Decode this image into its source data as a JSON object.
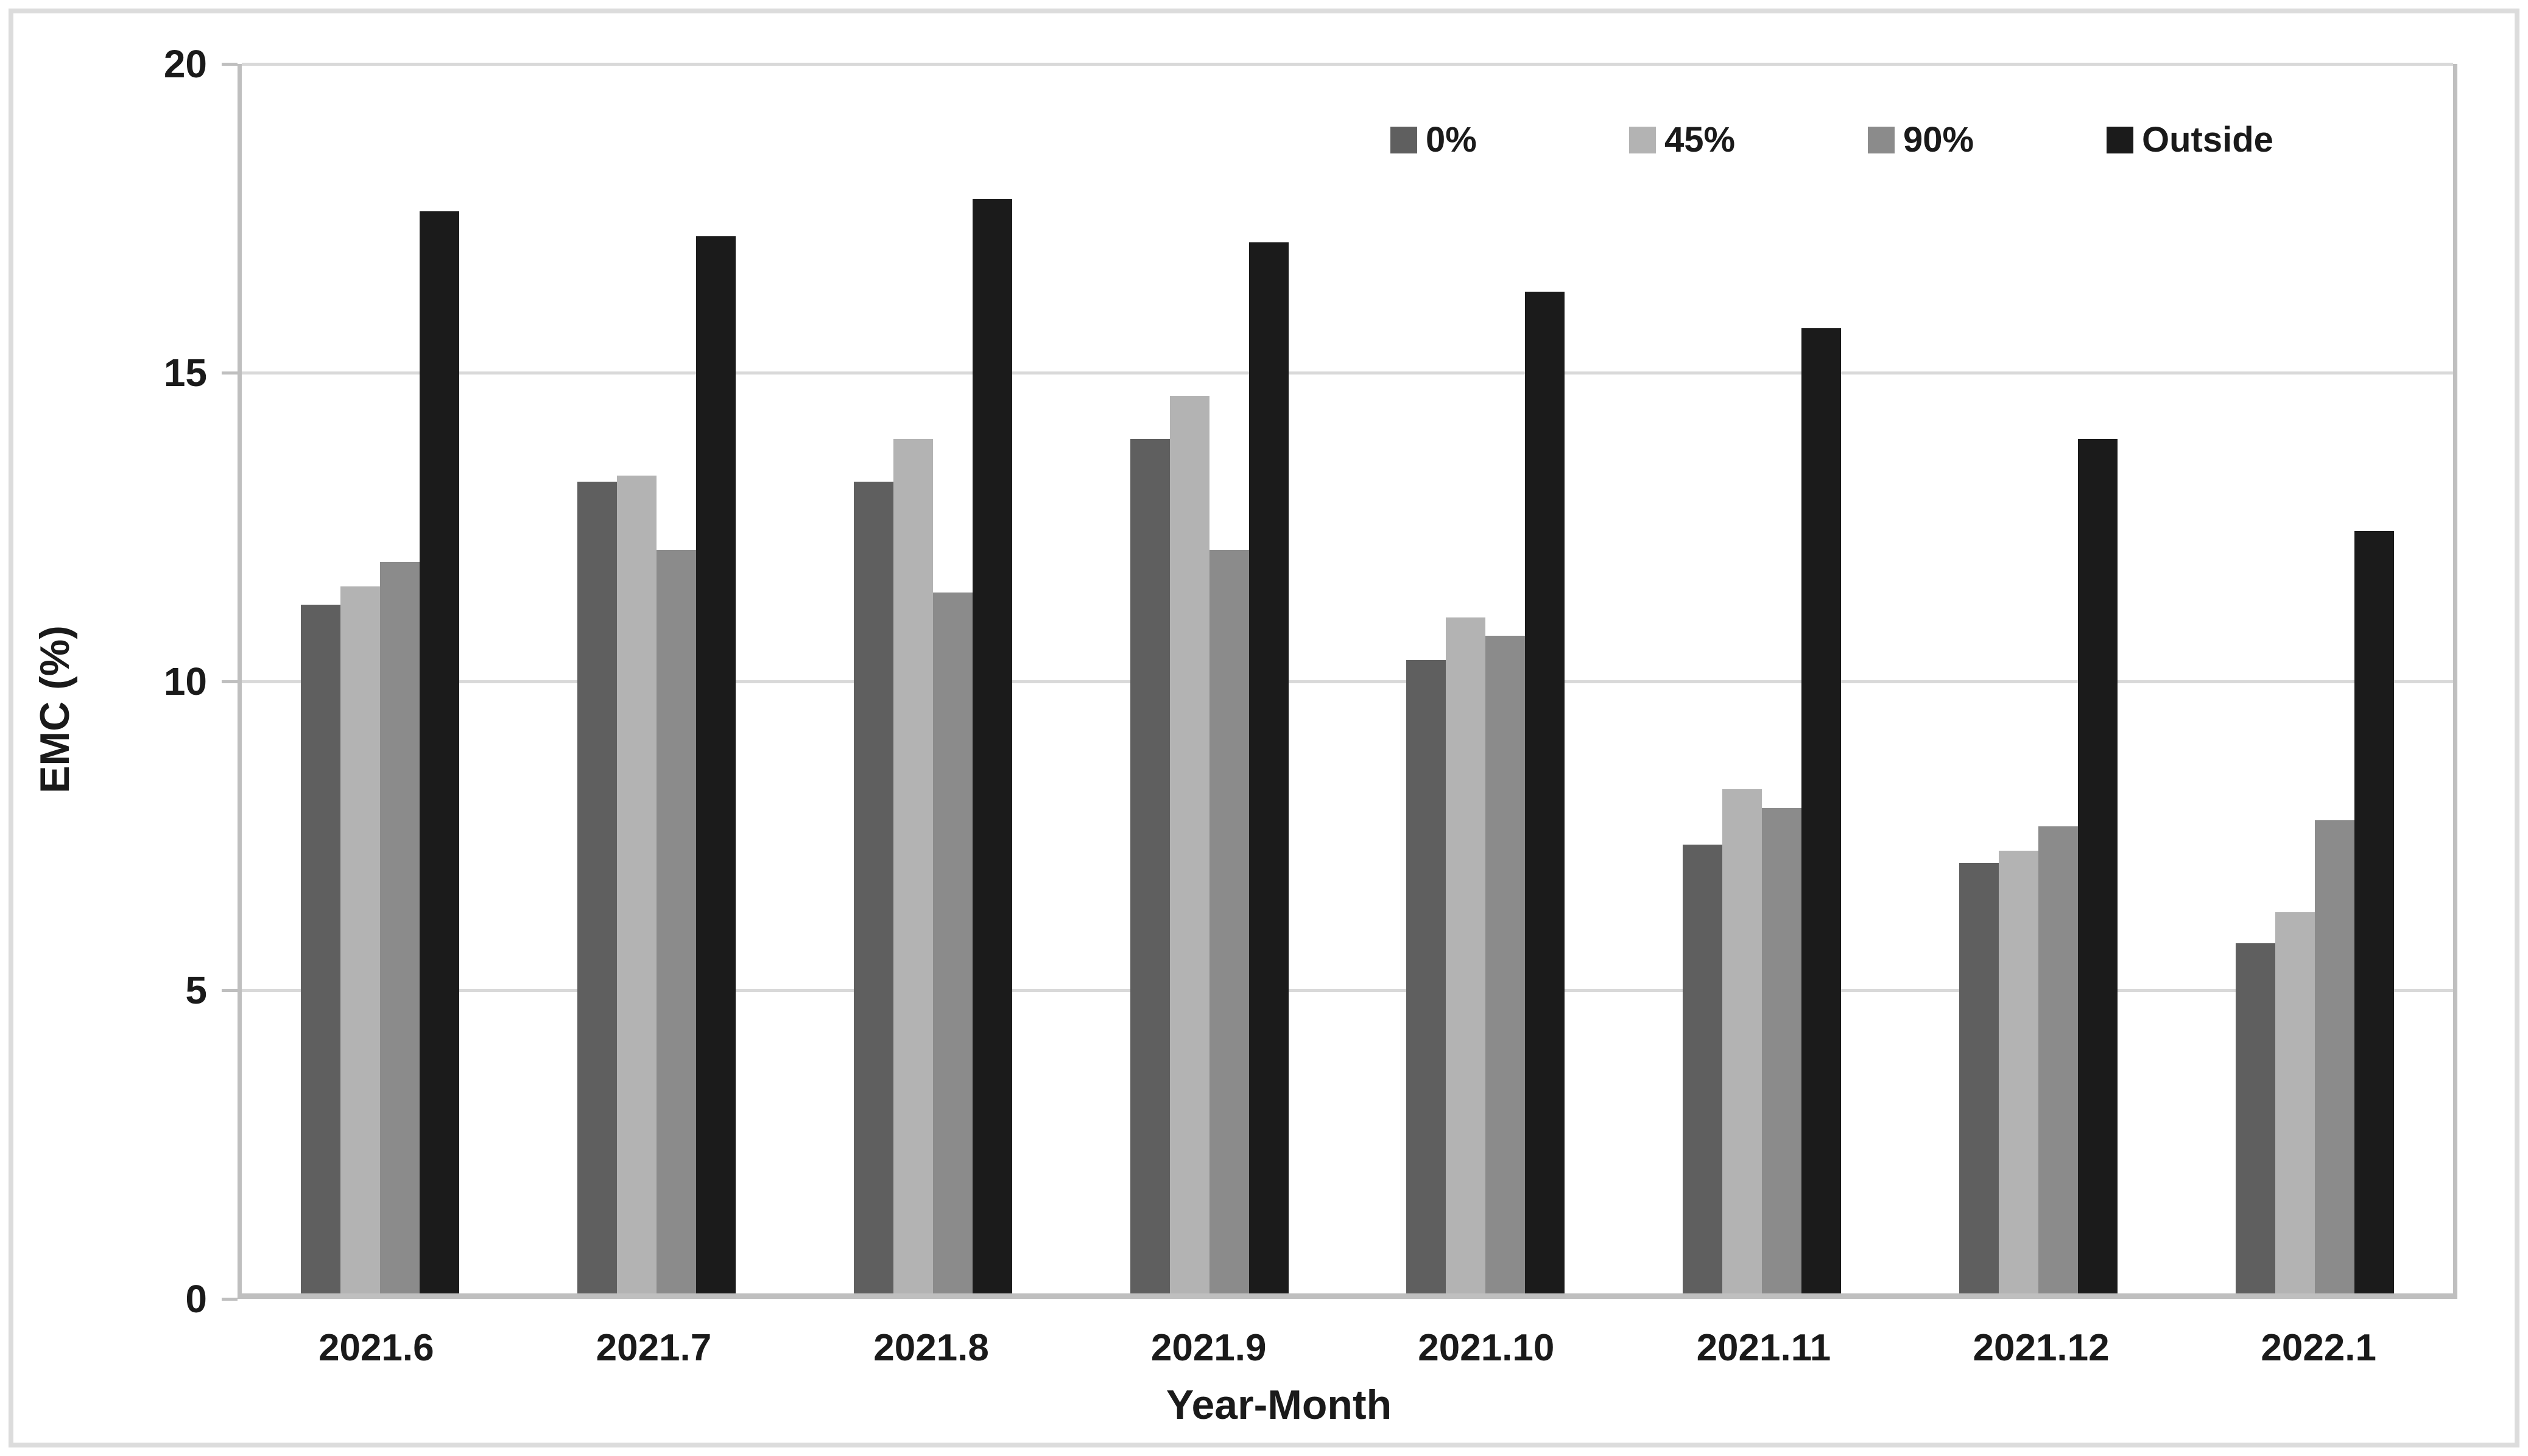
{
  "figure": {
    "background": "#ffffff",
    "border_color": "#dcdcdc"
  },
  "axes": {
    "y_title": "EMC (%)",
    "x_title": "Year-Month",
    "text_color": "#1a1a1a",
    "axis_line_color": "#bfbfbf",
    "gridline_color": "#d9d9d9"
  },
  "chart_data": {
    "type": "bar",
    "title": "",
    "xlabel": "Year-Month",
    "ylabel": "EMC (%)",
    "ylim": [
      0,
      20
    ],
    "yticks": [
      0,
      5,
      10,
      15,
      20
    ],
    "grid": true,
    "legend_position": "top-inside",
    "categories": [
      "2021.6",
      "2021.7",
      "2021.8",
      "2021.9",
      "2021.10",
      "2021.11",
      "2021.12",
      "2022.1"
    ],
    "series": [
      {
        "name": "0%",
        "color": "#5f5f5f",
        "values": [
          11.2,
          13.2,
          13.2,
          13.9,
          10.3,
          7.3,
          7.0,
          5.7
        ]
      },
      {
        "name": "45%",
        "color": "#b3b3b3",
        "values": [
          11.5,
          13.3,
          13.9,
          14.6,
          11.0,
          8.2,
          7.2,
          6.2
        ]
      },
      {
        "name": "90%",
        "color": "#8b8b8b",
        "values": [
          11.9,
          12.1,
          11.4,
          12.1,
          10.7,
          7.9,
          7.6,
          7.7
        ]
      },
      {
        "name": "Outside",
        "color": "#1b1b1b",
        "values": [
          17.6,
          17.2,
          17.8,
          17.1,
          16.3,
          15.7,
          13.9,
          12.4
        ]
      }
    ]
  }
}
